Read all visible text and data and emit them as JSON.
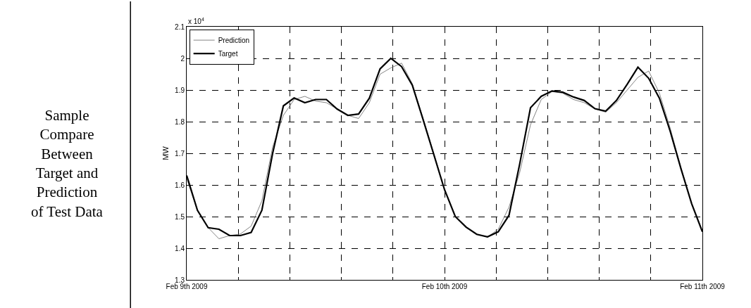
{
  "chart_data": {
    "type": "line",
    "ylabel": "MW",
    "annotations": [
      "x 10$^{4}$",
      "Sample\nCompare\nBetween\nTarget and\nPrediction\nof Test Data"
    ],
    "x": [
      "2009-02-09T00:00",
      "2009-02-09T01:00",
      "2009-02-09T02:00",
      "2009-02-09T03:00",
      "2009-02-09T04:00",
      "2009-02-09T05:00",
      "2009-02-09T06:00",
      "2009-02-09T07:00",
      "2009-02-09T08:00",
      "2009-02-09T09:00",
      "2009-02-09T10:00",
      "2009-02-09T11:00",
      "2009-02-09T12:00",
      "2009-02-09T13:00",
      "2009-02-09T14:00",
      "2009-02-09T15:00",
      "2009-02-09T16:00",
      "2009-02-09T17:00",
      "2009-02-09T18:00",
      "2009-02-09T19:00",
      "2009-02-09T20:00",
      "2009-02-09T21:00",
      "2009-02-09T22:00",
      "2009-02-09T23:00",
      "2009-02-10T00:00",
      "2009-02-10T01:00",
      "2009-02-10T02:00",
      "2009-02-10T03:00",
      "2009-02-10T04:00",
      "2009-02-10T05:00",
      "2009-02-10T06:00",
      "2009-02-10T07:00",
      "2009-02-10T08:00",
      "2009-02-10T09:00",
      "2009-02-10T10:00",
      "2009-02-10T11:00",
      "2009-02-10T12:00",
      "2009-02-10T13:00",
      "2009-02-10T14:00",
      "2009-02-10T15:00",
      "2009-02-10T16:00",
      "2009-02-10T17:00",
      "2009-02-10T18:00",
      "2009-02-10T19:00",
      "2009-02-10T20:00",
      "2009-02-10T21:00",
      "2009-02-10T22:00",
      "2009-02-10T23:00",
      "2009-02-11T00:00"
    ],
    "series": [
      {
        "name": "Prediction",
        "color": "#666666",
        "line_style": "solid",
        "values": [
          1.62,
          1.52,
          1.465,
          1.43,
          1.44,
          1.445,
          1.47,
          1.55,
          1.72,
          1.82,
          1.87,
          1.88,
          1.865,
          1.86,
          1.84,
          1.82,
          1.81,
          1.86,
          1.95,
          1.97,
          1.985,
          1.92,
          1.81,
          1.7,
          1.585,
          1.5,
          1.465,
          1.445,
          1.435,
          1.46,
          1.53,
          1.64,
          1.79,
          1.87,
          1.895,
          1.89,
          1.87,
          1.86,
          1.84,
          1.83,
          1.86,
          1.9,
          1.94,
          1.96,
          1.89,
          1.78,
          1.655,
          1.54,
          1.455
        ]
      },
      {
        "name": "Target",
        "color": "#000000",
        "line_style": "solid",
        "values": [
          1.63,
          1.52,
          1.465,
          1.46,
          1.44,
          1.44,
          1.45,
          1.52,
          1.7,
          1.85,
          1.875,
          1.86,
          1.87,
          1.87,
          1.84,
          1.82,
          1.824,
          1.874,
          1.967,
          2.0,
          1.974,
          1.915,
          1.807,
          1.696,
          1.585,
          1.5,
          1.467,
          1.444,
          1.436,
          1.452,
          1.504,
          1.667,
          1.844,
          1.88,
          1.897,
          1.893,
          1.878,
          1.867,
          1.841,
          1.833,
          1.867,
          1.918,
          1.972,
          1.937,
          1.874,
          1.77,
          1.652,
          1.541,
          1.452
        ]
      }
    ],
    "xlim": [
      "2009-02-09T00:00",
      "2009-02-11T00:00"
    ],
    "xticks": [
      {
        "value": "2009-02-09T00:00",
        "label": "Feb 9th 2009"
      },
      {
        "value": "2009-02-09T04:48",
        "label": null
      },
      {
        "value": "2009-02-09T09:36",
        "label": null
      },
      {
        "value": "2009-02-09T14:24",
        "label": null
      },
      {
        "value": "2009-02-09T19:12",
        "label": null
      },
      {
        "value": "2009-02-10T00:00",
        "label": "Feb 10th 2009"
      },
      {
        "value": "2009-02-10T04:48",
        "label": null
      },
      {
        "value": "2009-02-10T09:36",
        "label": null
      },
      {
        "value": "2009-02-10T14:24",
        "label": null
      },
      {
        "value": "2009-02-10T19:12",
        "label": null
      },
      {
        "value": "2009-02-11T00:00",
        "label": "Feb 11th 2009"
      }
    ],
    "ylim": [
      1.3,
      2.1
    ],
    "yticks": [
      1.3,
      1.4,
      1.5,
      1.6,
      1.7,
      1.8,
      1.9,
      {
        "value": 2.0,
        "label": "2"
      },
      2.1
    ],
    "grid": true,
    "legend": "top left",
    "marker": "none"
  }
}
